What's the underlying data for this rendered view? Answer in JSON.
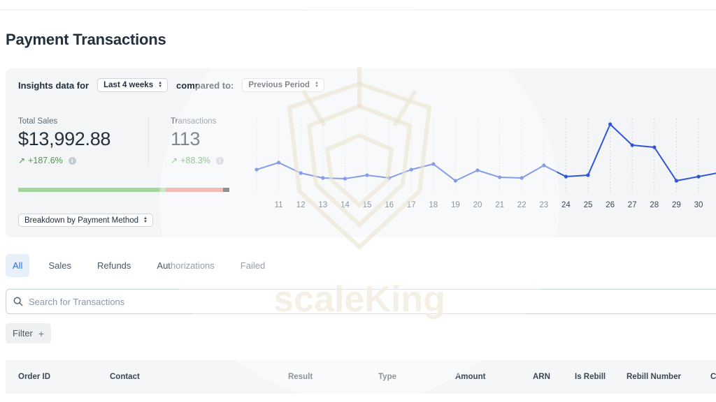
{
  "page": {
    "title": "Payment Transactions"
  },
  "insights": {
    "label": "Insights data for",
    "period": "Last 4 weeks",
    "compare_label": "compared to:",
    "compare": "Previous Period",
    "breakdown": "Breakdown by Payment Method"
  },
  "stats": {
    "sales": {
      "label": "Total Sales",
      "value": "$13,992.88",
      "change": "+187.6%"
    },
    "transactions": {
      "label": "Transactions",
      "value": "113",
      "change": "+88.3%"
    }
  },
  "progress_breakdown": [
    {
      "color": "#a5d79a",
      "fraction": 0.7
    },
    {
      "color": "#e88a86",
      "fraction": 0.27
    },
    {
      "color": "#3d4145",
      "fraction": 0.03
    }
  ],
  "chart_data": {
    "type": "line",
    "x": [
      "",
      "11",
      "12",
      "13",
      "14",
      "15",
      "16",
      "17",
      "18",
      "19",
      "20",
      "21",
      "22",
      "23",
      "24",
      "25",
      "26",
      "27",
      "28",
      "29",
      "30",
      ""
    ],
    "series": [
      {
        "values": [
          52,
          62,
          47,
          40,
          39,
          44,
          40,
          52,
          60,
          36,
          51,
          41,
          40,
          58,
          42,
          44,
          117,
          87,
          84,
          36,
          42,
          48
        ]
      }
    ],
    "ylim": [
      25,
      125
    ],
    "color": "#2f55d9",
    "grid": "vertical-dotted"
  },
  "tabs": [
    {
      "label": "All",
      "active": true
    },
    {
      "label": "Sales",
      "active": false
    },
    {
      "label": "Refunds",
      "active": false
    },
    {
      "label": "Authorizations",
      "active": false
    },
    {
      "label": "Failed",
      "active": false
    }
  ],
  "search": {
    "placeholder": "Search for Transactions"
  },
  "filter": {
    "label": "Filter",
    "icon": "plus-icon"
  },
  "table": {
    "columns": [
      "Order ID",
      "Contact",
      "Result",
      "Type",
      "Amount",
      "ARN",
      "Is Rebill",
      "Rebill Number",
      "C"
    ]
  },
  "watermark": {
    "text": "scaleKing"
  }
}
